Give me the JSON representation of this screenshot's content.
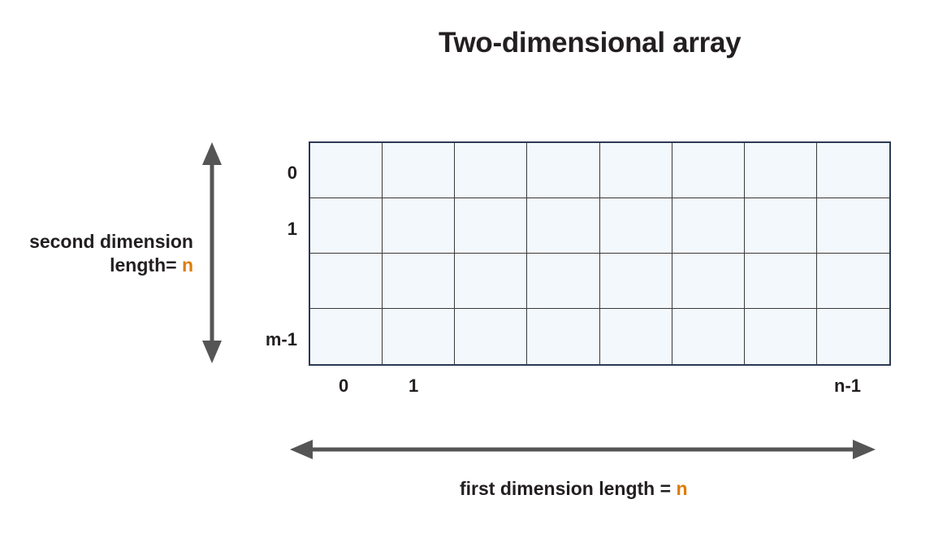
{
  "title": "Two-dimensional array",
  "grid": {
    "rows": 4,
    "cols": 8
  },
  "row_labels": [
    "0",
    "1",
    "m-1"
  ],
  "col_labels": [
    "0",
    "1",
    "n-1"
  ],
  "second_dimension": {
    "text_line1": "second dimension",
    "text_line2": "length= ",
    "variable": "n"
  },
  "first_dimension": {
    "text": "first dimension length = ",
    "variable": "n"
  },
  "colors": {
    "accent": "#e07b00",
    "cell_fill": "#f3f8fc",
    "border": "#2b3a55",
    "arrow": "#555555"
  }
}
